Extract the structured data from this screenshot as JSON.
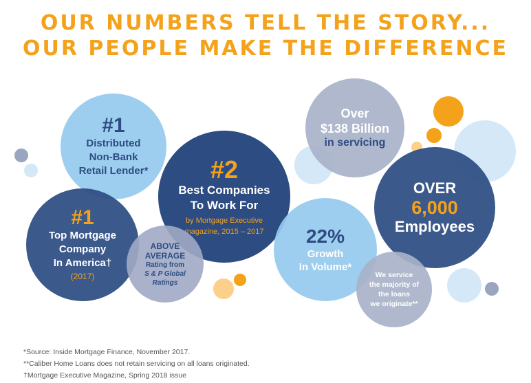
{
  "headline": {
    "line1": "Our numbers tell the story...",
    "line2": "our people make the difference"
  },
  "bubbles": {
    "distributed": {
      "rank": "#1",
      "line1": "Distributed",
      "line2": "Non-Bank",
      "line3": "Retail Lender*"
    },
    "top_mortgage": {
      "rank": "#1",
      "line1": "Top Mortgage",
      "line2": "Company",
      "line3": "In America†",
      "year": "(2017)"
    },
    "best_companies": {
      "rank": "#2",
      "line1": "Best Companies",
      "line2": "To Work For",
      "source1": "by Mortgage Executive",
      "source2": "magazine, 2015 – 2017"
    },
    "above_average": {
      "line1": "ABOVE",
      "line2": "AVERAGE",
      "line3": "Rating from",
      "line4": "S & P Global",
      "line5": "Ratings"
    },
    "servicing": {
      "line1": "Over",
      "line2": "$138 Billion",
      "line3": "in servicing"
    },
    "growth": {
      "value": "22%",
      "line1": "Growth",
      "line2": "In Volume*"
    },
    "employees": {
      "line1": "OVER",
      "value": "6,000",
      "line2": "Employees"
    },
    "we_service": {
      "line1": "We service",
      "line2": "the majority of",
      "line3": "the loans",
      "line4": "we originate**"
    }
  },
  "footnotes": [
    "*Source: Inside Mortgage Finance, November 2017.",
    "**Caliber Home Loans does not retain servicing on all loans originated.",
    "†Mortgage Executive Magazine, Spring 2018 issue"
  ],
  "colors": {
    "navy": "#2d4c82",
    "orange": "#f5a21b",
    "sky": "#96caee",
    "slate": "#a8b2c9"
  }
}
